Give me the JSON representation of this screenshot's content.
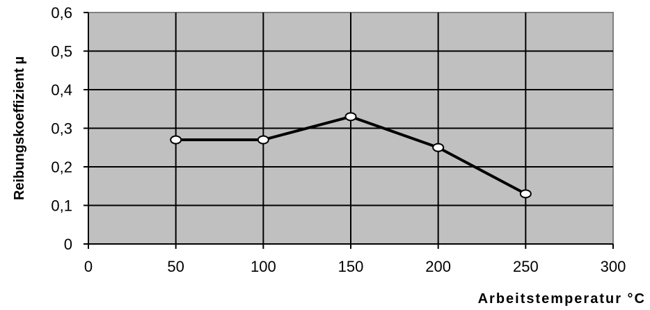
{
  "chart_data": {
    "type": "line",
    "title": "",
    "xlabel": "Arbeitstemperatur °C",
    "ylabel": "Reibungskoeffizient µ",
    "xlim": [
      0,
      300
    ],
    "ylim": [
      0,
      0.6
    ],
    "x_ticks": [
      0,
      50,
      100,
      150,
      200,
      250,
      300
    ],
    "x_tick_labels": [
      "0",
      "50",
      "100",
      "150",
      "200",
      "250",
      "300"
    ],
    "y_ticks": [
      0,
      0.1,
      0.2,
      0.3,
      0.4,
      0.5,
      0.6
    ],
    "y_tick_labels": [
      "0",
      "0,1",
      "0,2",
      "0,3",
      "0,4",
      "0,5",
      "0,6"
    ],
    "grid": true,
    "legend": "none",
    "series": [
      {
        "x": [
          50,
          100,
          150,
          200,
          250
        ],
        "values": [
          0.27,
          0.27,
          0.33,
          0.25,
          0.13
        ]
      }
    ],
    "colors": {
      "plot_background": "#c0c0c0",
      "line": "#000000",
      "marker_fill": "#ffffff",
      "grid": "#000000"
    }
  }
}
